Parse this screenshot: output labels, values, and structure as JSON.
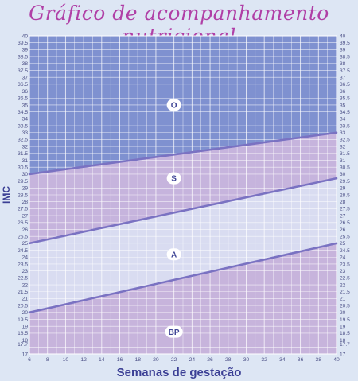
{
  "title": "Gráfico de acompanhamento nutricional",
  "chart_data": {
    "type": "area",
    "title": "Gráfico de acompanhamento nutricional",
    "xlabel": "Semanas de gestação",
    "ylabel": "IMC",
    "xlim": [
      6,
      40
    ],
    "ylim": [
      17,
      40
    ],
    "x_ticks": [
      6,
      8,
      10,
      12,
      14,
      16,
      18,
      20,
      22,
      24,
      26,
      28,
      30,
      32,
      34,
      36,
      38,
      40
    ],
    "y_tick_labels": [
      "17",
      "17.7",
      "18",
      "18.5",
      "19",
      "19.5",
      "20",
      "20.5",
      "21",
      "21.5",
      "22",
      "22.5",
      "23",
      "23.5",
      "24",
      "24.5",
      "25",
      "25.5",
      "26",
      "26.5",
      "27",
      "27.5",
      "28",
      "28.5",
      "29",
      "29.5",
      "30",
      "30.5",
      "31",
      "31.5",
      "32",
      "32.5",
      "33",
      "33.5",
      "34",
      "34.5",
      "35",
      "35.5",
      "36",
      "36.5",
      "37",
      "37.5",
      "38",
      "38.5",
      "39",
      "39.5",
      "40"
    ],
    "y_tick_values": [
      17,
      17.7,
      18,
      18.5,
      19,
      19.5,
      20,
      20.5,
      21,
      21.5,
      22,
      22.5,
      23,
      23.5,
      24,
      24.5,
      25,
      25.5,
      26,
      26.5,
      27,
      27.5,
      28,
      28.5,
      29,
      29.5,
      30,
      30.5,
      31,
      31.5,
      32,
      32.5,
      33,
      33.5,
      34,
      34.5,
      35,
      35.5,
      36,
      36.5,
      37,
      37.5,
      38,
      38.5,
      39,
      39.5,
      40
    ],
    "boundaries": [
      {
        "x": [
          6,
          40
        ],
        "y": [
          20,
          25
        ]
      },
      {
        "x": [
          6,
          40
        ],
        "y": [
          25,
          29.7
        ]
      },
      {
        "x": [
          6,
          40
        ],
        "y": [
          30,
          33
        ]
      }
    ],
    "zones": [
      {
        "label": "BP",
        "label_at": [
          22,
          18.6
        ],
        "color": "#c7b4dc"
      },
      {
        "label": "A",
        "label_at": [
          22,
          24.2
        ],
        "color": "#d9dcf1"
      },
      {
        "label": "S",
        "label_at": [
          22,
          29.7
        ],
        "color": "#c6b4dd"
      },
      {
        "label": "O",
        "label_at": [
          22,
          35
        ],
        "color": "#7f91d0"
      }
    ],
    "grid": true,
    "colors": {
      "line": "#7a72c2",
      "grid": "#ffffff",
      "tick_text": "#4b4f86",
      "axis_label": "#3b3f95",
      "title": "#b03fa6"
    }
  }
}
